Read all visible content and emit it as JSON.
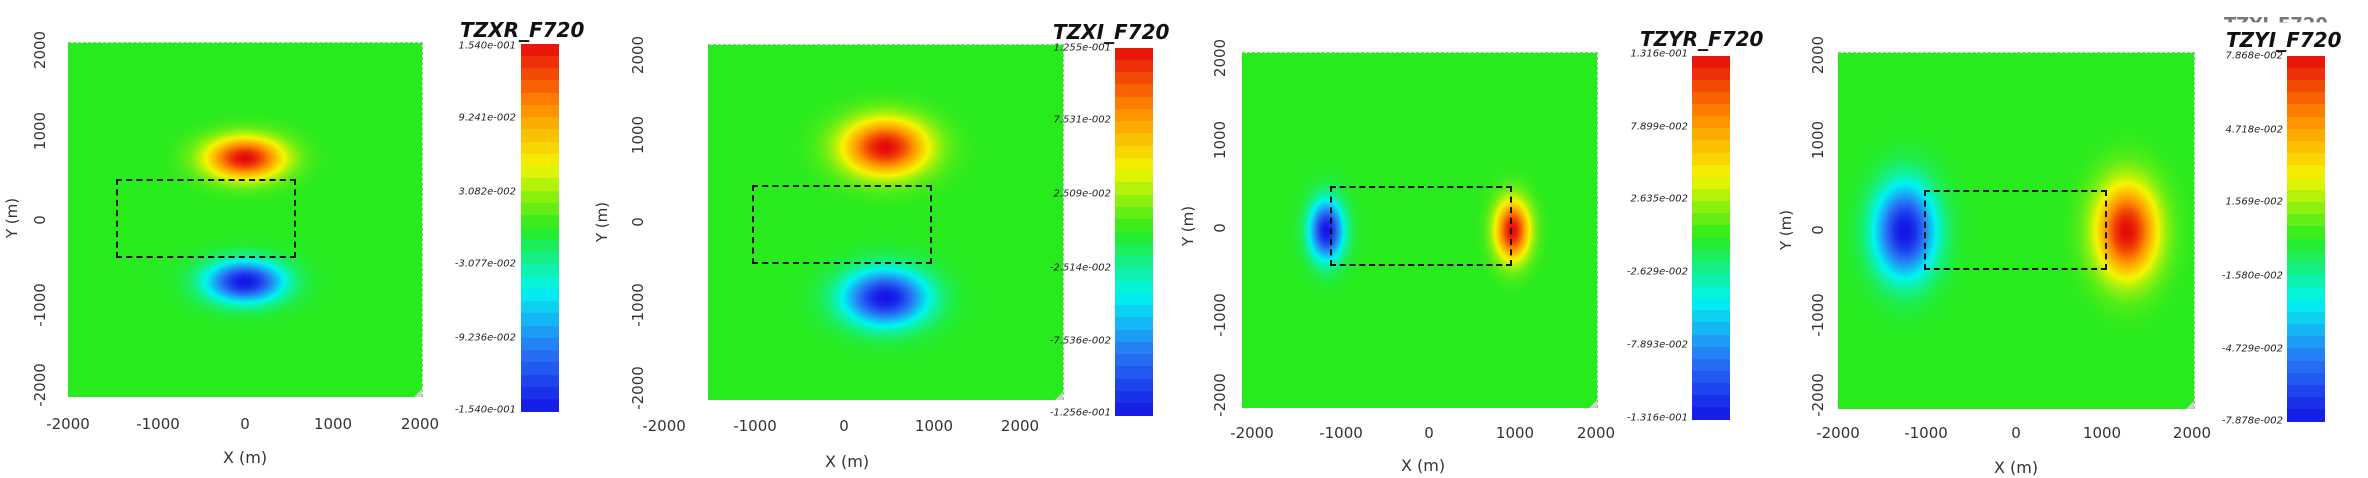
{
  "chart_data": [
    {
      "type": "heatmap",
      "title": "TZXR_F720",
      "xlabel": "X (m)",
      "ylabel": "Y (m)",
      "xlim": [
        -2000,
        2000
      ],
      "ylim": [
        -2000,
        2000
      ],
      "x_ticks": [
        "-2000",
        "-1000",
        "0",
        "1000",
        "2000"
      ],
      "y_ticks": [
        "-2000",
        "-1000",
        "0",
        "1000",
        "2000"
      ],
      "colorbar_labels": [
        "1.540e-001",
        "9.241e-002",
        "3.082e-002",
        "-3.077e-002",
        "-9.236e-002",
        "-1.540e-001"
      ],
      "vmin": -0.154,
      "vmax": 0.154,
      "anomaly_box": [
        [
          -1000,
          -400
        ],
        [
          1000,
          400
        ]
      ],
      "features": [
        {
          "x": 0,
          "y": 700,
          "value": 0.154
        },
        {
          "x": 0,
          "y": -700,
          "value": -0.154
        }
      ]
    },
    {
      "type": "heatmap",
      "title": "TZXI_F720",
      "xlabel": "X (m)",
      "ylabel": "Y (m)",
      "xlim": [
        -2000,
        2000
      ],
      "ylim": [
        -2000,
        2000
      ],
      "x_ticks": [
        "-2000",
        "-1000",
        "0",
        "1000",
        "2000"
      ],
      "y_ticks": [
        "-2000",
        "-1000",
        "0",
        "1000",
        "2000"
      ],
      "colorbar_labels": [
        "1.255e-001",
        "7.531e-002",
        "2.509e-002",
        "-2.514e-002",
        "-7.536e-002",
        "-1.256e-001"
      ],
      "vmin": -0.1256,
      "vmax": 0.1255,
      "anomaly_box": [
        [
          -1000,
          -400
        ],
        [
          1000,
          400
        ]
      ],
      "features": [
        {
          "x": 0,
          "y": 850,
          "value": 0.1255
        },
        {
          "x": 0,
          "y": -850,
          "value": -0.1256
        }
      ]
    },
    {
      "type": "heatmap",
      "title": "TZYR_F720",
      "xlabel": "X (m)",
      "ylabel": "Y (m)",
      "xlim": [
        -2000,
        2000
      ],
      "ylim": [
        -2000,
        2000
      ],
      "x_ticks": [
        "-2000",
        "-1000",
        "0",
        "1000",
        "2000"
      ],
      "y_ticks": [
        "-2000",
        "-1000",
        "0",
        "1000",
        "2000"
      ],
      "colorbar_labels": [
        "1.316e-001",
        "7.899e-002",
        "2.635e-002",
        "-2.629e-002",
        "-7.893e-002",
        "-1.316e-001"
      ],
      "vmin": -0.1316,
      "vmax": 0.1316,
      "anomaly_box": [
        [
          -1000,
          -400
        ],
        [
          1000,
          400
        ]
      ],
      "features": [
        {
          "x": -1050,
          "y": 0,
          "value": -0.1316
        },
        {
          "x": 1050,
          "y": 0,
          "value": 0.1316
        }
      ]
    },
    {
      "type": "heatmap",
      "title": "TZYI_F720",
      "xlabel": "X (m)",
      "ylabel": "Y (m)",
      "xlim": [
        -2000,
        2000
      ],
      "ylim": [
        -2000,
        2000
      ],
      "x_ticks": [
        "-2000",
        "-1000",
        "0",
        "1000",
        "2000"
      ],
      "y_ticks": [
        "-2000",
        "-1000",
        "0",
        "1000",
        "2000"
      ],
      "colorbar_labels": [
        "7.868e-002",
        "4.718e-002",
        "1.569e-002",
        "-1.580e-002",
        "-4.729e-002",
        "-7.878e-002"
      ],
      "vmin": -0.07878,
      "vmax": 0.07868,
      "anomaly_box": [
        [
          -1000,
          -400
        ],
        [
          1000,
          400
        ]
      ],
      "features": [
        {
          "x": -1250,
          "y": 0,
          "value": -0.07878
        },
        {
          "x": 1250,
          "y": 0,
          "value": 0.07868
        }
      ]
    }
  ]
}
